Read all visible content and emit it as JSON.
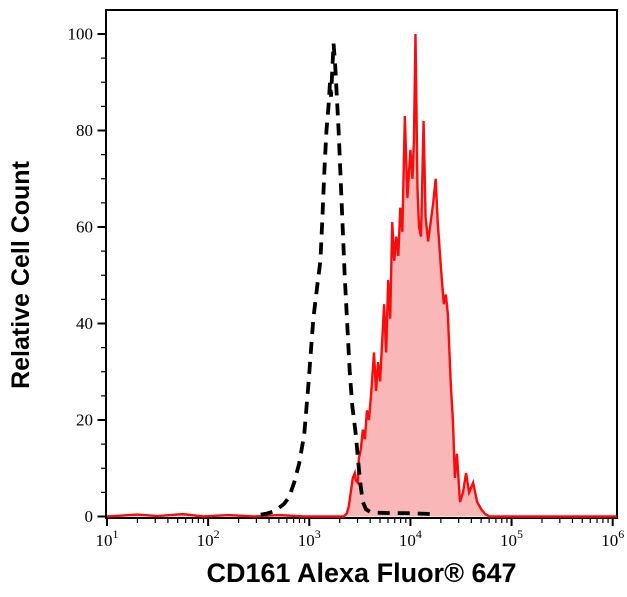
{
  "chart_data": {
    "type": "area",
    "title": "",
    "xlabel": "CD161 Alexa Fluor® 647",
    "ylabel": "Relative Cell Count",
    "x_scale": "log10",
    "grid": false,
    "legend": null,
    "x_axis": {
      "min_exponent": 1,
      "max_exponent": 6,
      "major_tick_exponents": [
        1,
        2,
        3,
        4,
        5,
        6
      ],
      "tick_label_base": "10",
      "minor_ticks_per_decade": [
        2,
        3,
        4,
        5,
        6,
        7,
        8,
        9
      ]
    },
    "y_axis": {
      "min": 0,
      "max": 100,
      "major_ticks": [
        0,
        20,
        40,
        60,
        80,
        100
      ],
      "minor_tick_step": 5
    },
    "series": [
      {
        "name": "cd161-alexa-fluor-647-stained",
        "color": "#f90c0c",
        "line_style": "solid",
        "line_width": 2.4,
        "fill": "rgba(244,84,84,0.42)",
        "points_log10x_y": [
          [
            1.0,
            0
          ],
          [
            1.3,
            0.4
          ],
          [
            1.5,
            0.1
          ],
          [
            1.75,
            0.5
          ],
          [
            1.95,
            0
          ],
          [
            2.2,
            0.3
          ],
          [
            2.45,
            0
          ],
          [
            2.7,
            0.3
          ],
          [
            2.95,
            0
          ],
          [
            3.2,
            0
          ],
          [
            3.34,
            0
          ],
          [
            3.37,
            0.6
          ],
          [
            3.39,
            2
          ],
          [
            3.41,
            5
          ],
          [
            3.43,
            8
          ],
          [
            3.45,
            9
          ],
          [
            3.46,
            7.5
          ],
          [
            3.48,
            7
          ],
          [
            3.49,
            12
          ],
          [
            3.51,
            14
          ],
          [
            3.53,
            18
          ],
          [
            3.55,
            16
          ],
          [
            3.57,
            22
          ],
          [
            3.59,
            20
          ],
          [
            3.61,
            25
          ],
          [
            3.64,
            34
          ],
          [
            3.66,
            26
          ],
          [
            3.68,
            32
          ],
          [
            3.7,
            28
          ],
          [
            3.72,
            36
          ],
          [
            3.74,
            44
          ],
          [
            3.76,
            34
          ],
          [
            3.78,
            49
          ],
          [
            3.8,
            41
          ],
          [
            3.82,
            61
          ],
          [
            3.84,
            53
          ],
          [
            3.86,
            58
          ],
          [
            3.88,
            54
          ],
          [
            3.9,
            64
          ],
          [
            3.92,
            59
          ],
          [
            3.945,
            83
          ],
          [
            3.97,
            66
          ],
          [
            4.0,
            76
          ],
          [
            4.02,
            70
          ],
          [
            4.035,
            78
          ],
          [
            4.05,
            100
          ],
          [
            4.07,
            68
          ],
          [
            4.085,
            60
          ],
          [
            4.105,
            58
          ],
          [
            4.13,
            82
          ],
          [
            4.15,
            62
          ],
          [
            4.175,
            57
          ],
          [
            4.2,
            61
          ],
          [
            4.225,
            65
          ],
          [
            4.25,
            70
          ],
          [
            4.27,
            61
          ],
          [
            4.3,
            52
          ],
          [
            4.33,
            44
          ],
          [
            4.35,
            46
          ],
          [
            4.37,
            42
          ],
          [
            4.4,
            27
          ],
          [
            4.42,
            20
          ],
          [
            4.44,
            8
          ],
          [
            4.46,
            13
          ],
          [
            4.49,
            3
          ],
          [
            4.52,
            5
          ],
          [
            4.55,
            9
          ],
          [
            4.58,
            5
          ],
          [
            4.62,
            7
          ],
          [
            4.66,
            3
          ],
          [
            4.7,
            1.5
          ],
          [
            4.74,
            0.5
          ],
          [
            4.78,
            0
          ],
          [
            5.0,
            0
          ],
          [
            5.5,
            0
          ],
          [
            6.04,
            0
          ]
        ]
      },
      {
        "name": "isotype-control-unstained",
        "color": "#000000",
        "line_style": "dashed",
        "line_width": 3.8,
        "dash_pattern": [
          12,
          8
        ],
        "fill": "none",
        "points_log10x_y": [
          [
            2.52,
            0.4
          ],
          [
            2.58,
            0.6
          ],
          [
            2.64,
            1
          ],
          [
            2.7,
            1.8
          ],
          [
            2.75,
            2.6
          ],
          [
            2.8,
            4
          ],
          [
            2.85,
            7
          ],
          [
            2.9,
            11
          ],
          [
            2.95,
            17
          ],
          [
            2.99,
            27
          ],
          [
            3.04,
            41
          ],
          [
            3.08,
            48
          ],
          [
            3.11,
            53
          ],
          [
            3.13,
            62
          ],
          [
            3.15,
            72
          ],
          [
            3.17,
            80
          ],
          [
            3.19,
            85
          ],
          [
            3.205,
            90
          ],
          [
            3.215,
            87
          ],
          [
            3.24,
            98
          ],
          [
            3.255,
            94
          ],
          [
            3.27,
            88
          ],
          [
            3.29,
            80
          ],
          [
            3.31,
            70
          ],
          [
            3.33,
            60
          ],
          [
            3.35,
            50
          ],
          [
            3.375,
            40
          ],
          [
            3.4,
            30
          ],
          [
            3.425,
            23
          ],
          [
            3.46,
            17
          ],
          [
            3.49,
            10
          ],
          [
            3.51,
            6
          ],
          [
            3.53,
            3
          ],
          [
            3.56,
            1.5
          ],
          [
            3.6,
            1
          ],
          [
            3.66,
            0.8
          ],
          [
            3.8,
            0.7
          ],
          [
            3.95,
            0.7
          ],
          [
            4.1,
            0.6
          ],
          [
            4.22,
            0.5
          ]
        ]
      }
    ]
  },
  "colors": {
    "background": "#ffffff",
    "axis": "#000000",
    "tick_labels": "#000000",
    "stained_curve": "#f90c0c",
    "stained_fill": "rgba(244,84,84,0.42)",
    "isotype_curve": "#000000"
  }
}
